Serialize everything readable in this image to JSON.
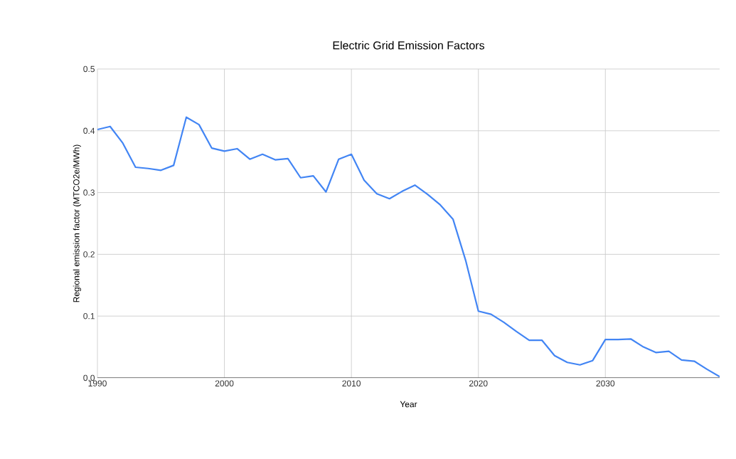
{
  "chart_data": {
    "type": "line",
    "title": "Electric Grid Emission Factors",
    "xlabel": "Year",
    "ylabel": "Regional emission factor (MTCO2e/MWh)",
    "x": [
      1990,
      1991,
      1992,
      1993,
      1994,
      1995,
      1996,
      1997,
      1998,
      1999,
      2000,
      2001,
      2002,
      2003,
      2004,
      2005,
      2006,
      2007,
      2008,
      2009,
      2010,
      2011,
      2012,
      2013,
      2014,
      2015,
      2016,
      2017,
      2018,
      2019,
      2020,
      2021,
      2022,
      2023,
      2024,
      2025,
      2026,
      2027,
      2028,
      2029,
      2030,
      2031,
      2032,
      2033,
      2034,
      2035,
      2036,
      2037,
      2038,
      2039
    ],
    "series": [
      {
        "color": "#4285f4",
        "values": [
          0.402,
          0.407,
          0.38,
          0.341,
          0.339,
          0.336,
          0.344,
          0.422,
          0.41,
          0.372,
          0.367,
          0.371,
          0.354,
          0.362,
          0.353,
          0.355,
          0.324,
          0.327,
          0.301,
          0.354,
          0.362,
          0.32,
          0.298,
          0.29,
          0.302,
          0.312,
          0.297,
          0.28,
          0.257,
          0.19,
          0.108,
          0.103,
          0.09,
          0.075,
          0.061,
          0.061,
          0.036,
          0.025,
          0.021,
          0.028,
          0.062,
          0.062,
          0.063,
          0.05,
          0.041,
          0.043,
          0.029,
          0.027,
          0.014,
          0.002
        ]
      }
    ],
    "xlim": [
      1990,
      2039
    ],
    "ylim": [
      0,
      0.5
    ],
    "xticks": [
      1990,
      2000,
      2010,
      2020,
      2030
    ],
    "yticks": [
      {
        "value": 0,
        "label": "0.0"
      },
      0.1,
      0.2,
      0.3,
      0.4,
      0.5
    ],
    "grid": true,
    "marker": "none",
    "line_style": "solid"
  }
}
